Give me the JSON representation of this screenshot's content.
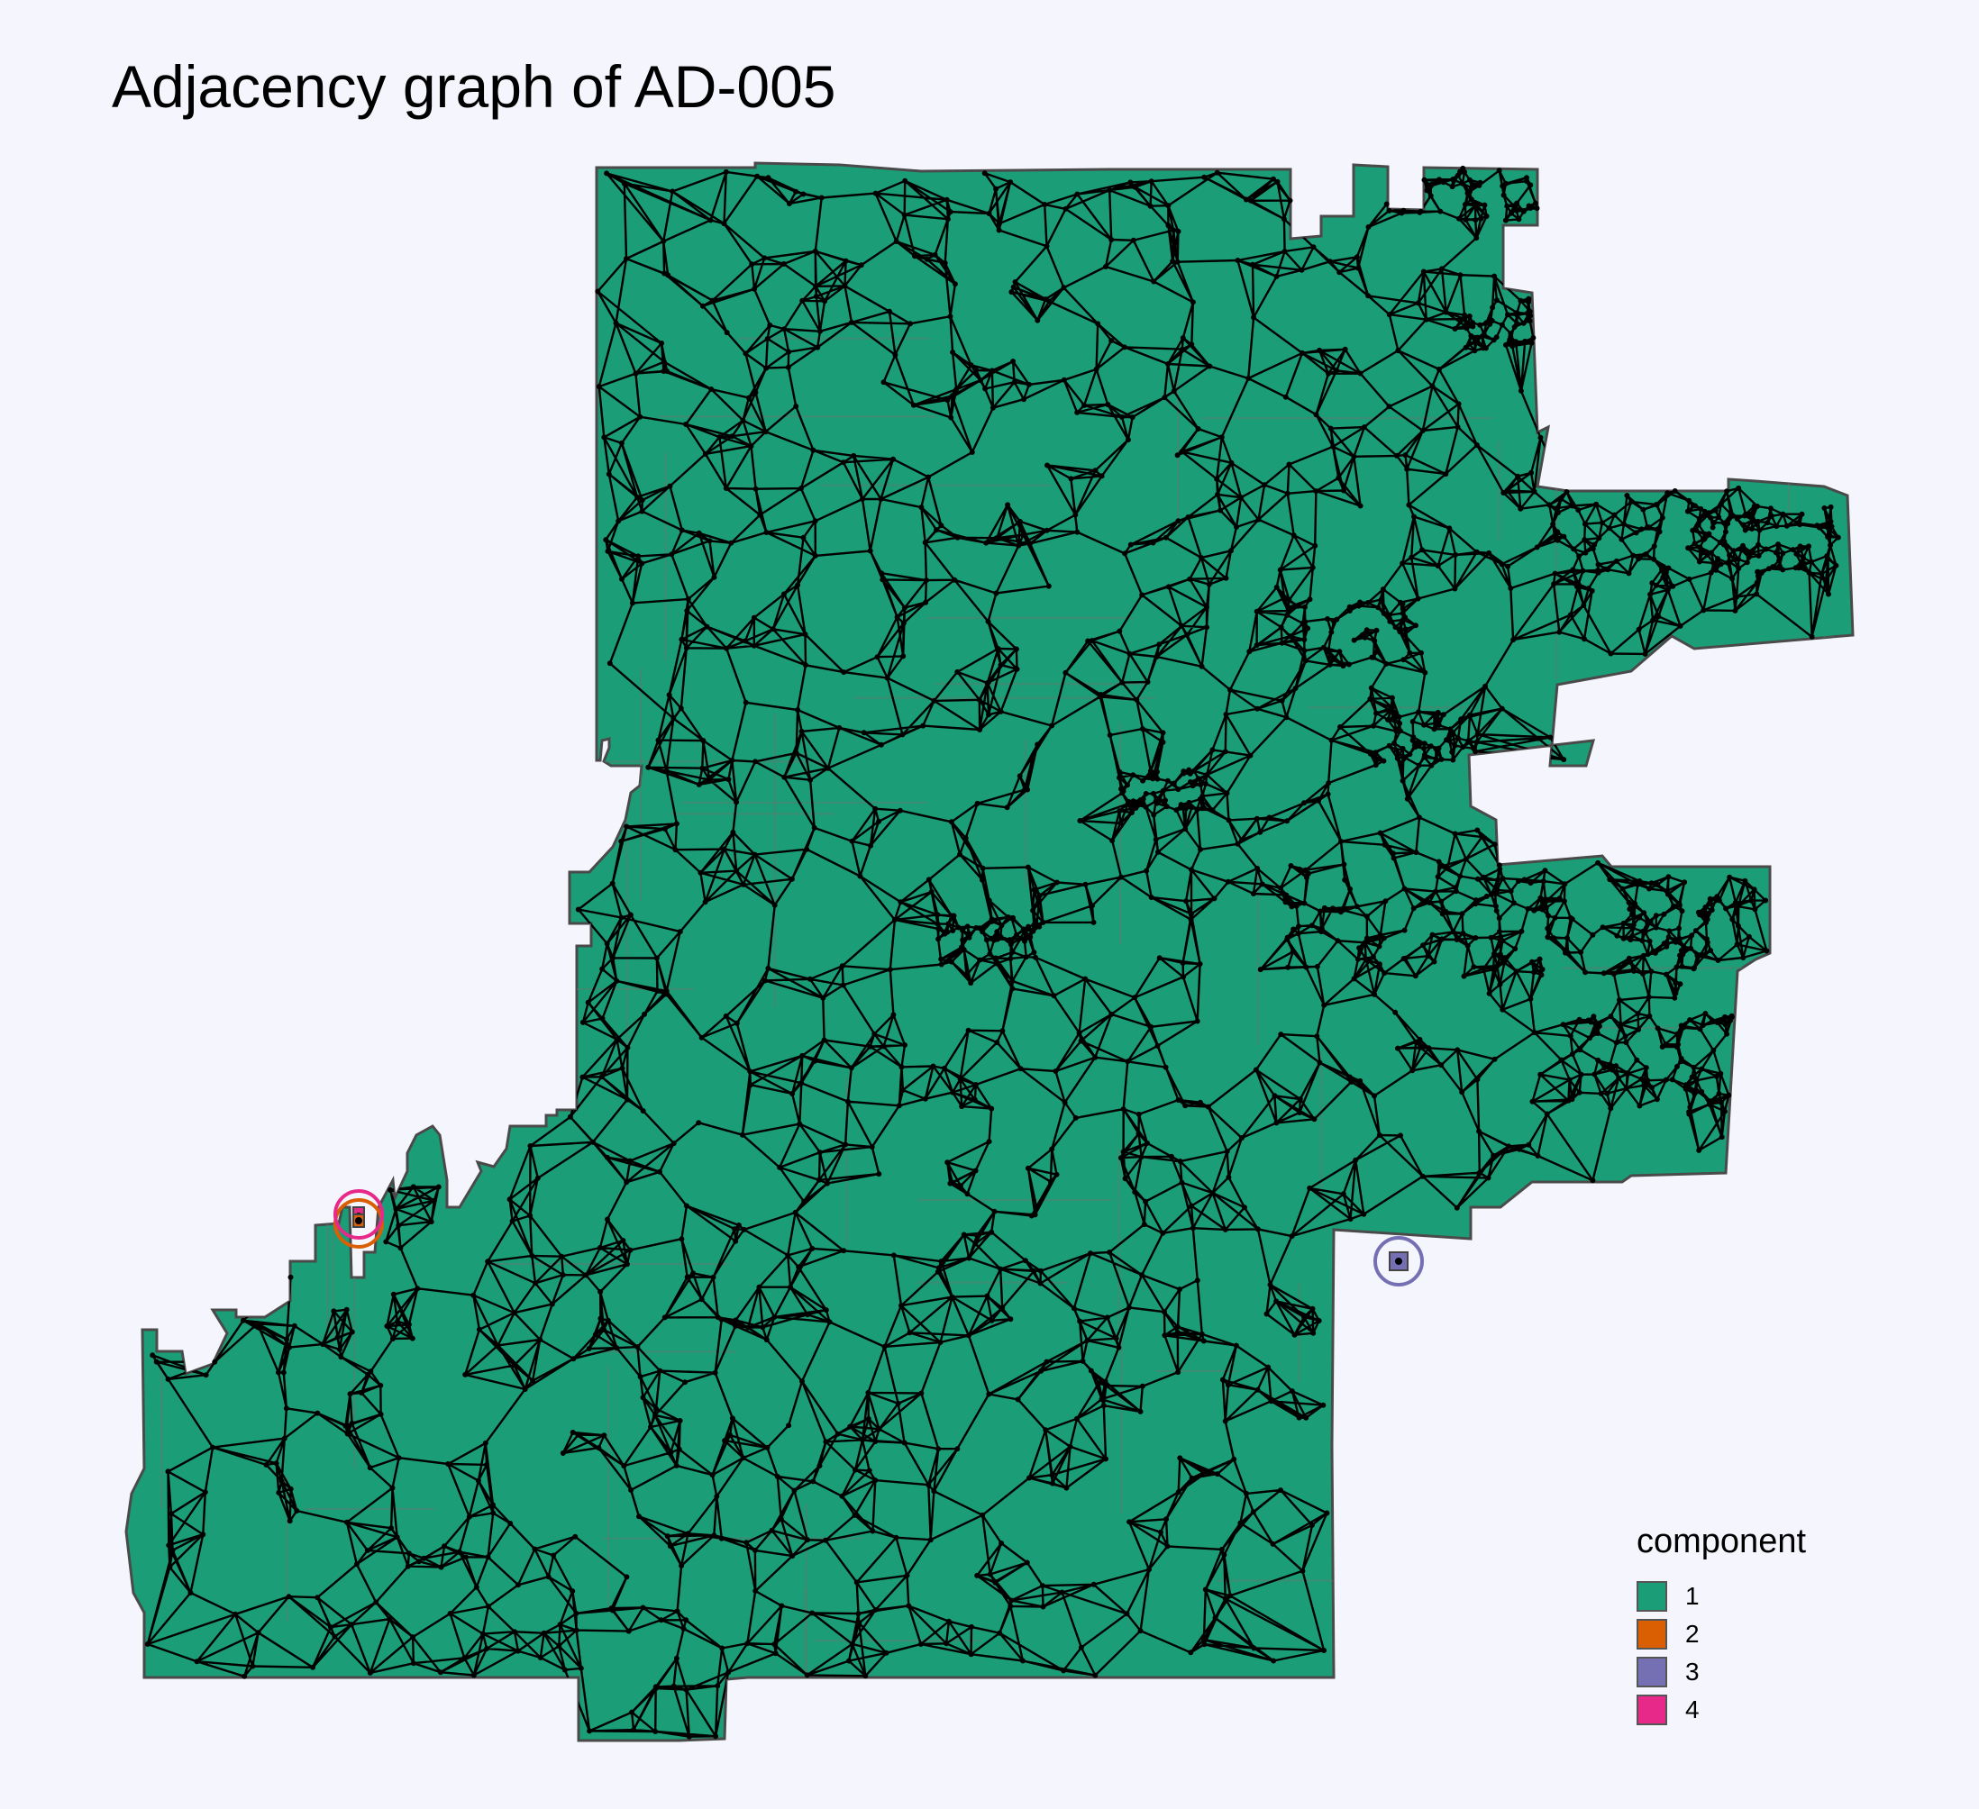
{
  "title": "Adjacency graph of AD-005",
  "legend": {
    "title": "component",
    "items": [
      {
        "label": "1",
        "color": "#1b9e77"
      },
      {
        "label": "2",
        "color": "#d95f02"
      },
      {
        "label": "3",
        "color": "#7570b3"
      },
      {
        "label": "4",
        "color": "#e7298a"
      }
    ]
  },
  "map": {
    "land_color": "#1b9e77",
    "border_color": "#4a4a4a",
    "edge_color": "#000000",
    "background": "#f5f6fd",
    "highlighted_components": [
      {
        "component": "2",
        "ring_color": "#d95f02"
      },
      {
        "component": "3",
        "ring_color": "#7570b3"
      },
      {
        "component": "4",
        "ring_color": "#e7298a"
      }
    ]
  }
}
